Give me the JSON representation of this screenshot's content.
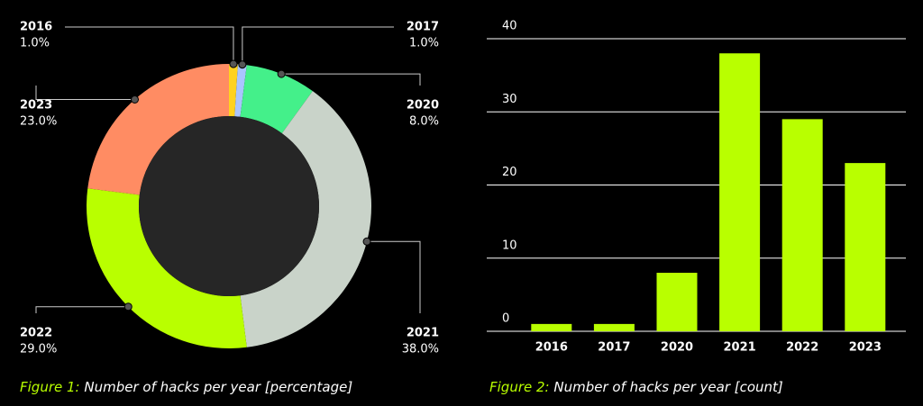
{
  "chart_data": [
    {
      "type": "donut",
      "categories": [
        "2016",
        "2017",
        "2020",
        "2021",
        "2022",
        "2023"
      ],
      "values": [
        1,
        1,
        8,
        38,
        29,
        23
      ],
      "value_labels": [
        "1.0%",
        "1.0%",
        "8.0%",
        "38.0%",
        "29.0%",
        "23.0%"
      ],
      "colors": [
        "#ffd21f",
        "#a9c4ff",
        "#44f08a",
        "#c9d3c9",
        "#b9ff00",
        "#ff8c63"
      ],
      "caption_label": "Figure 1:",
      "caption": "Number of hacks per year [percentage]"
    },
    {
      "type": "bar",
      "categories": [
        "2016",
        "2017",
        "2020",
        "2021",
        "2022",
        "2023"
      ],
      "values": [
        1,
        1,
        8,
        38,
        29,
        23
      ],
      "color": "#b9ff00",
      "ylim": [
        0,
        40
      ],
      "yticks": [
        0,
        10,
        20,
        30,
        40
      ],
      "grid": true,
      "caption_label": "Figure 2:",
      "caption": "Number of hacks per year [count]"
    }
  ]
}
